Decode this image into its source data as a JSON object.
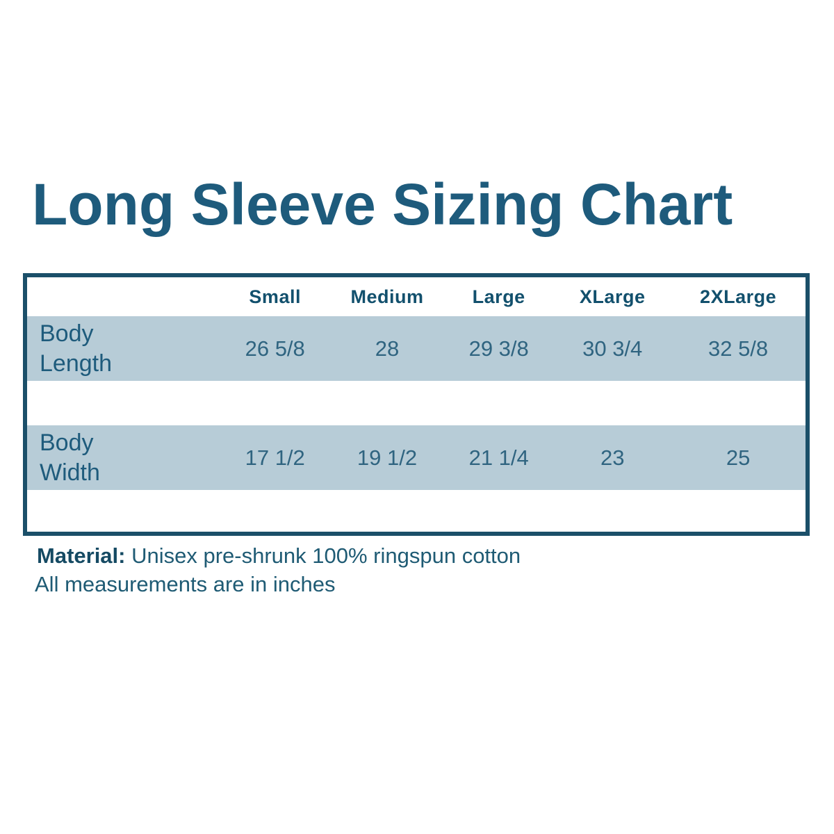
{
  "title": "Long Sleeve Sizing Chart",
  "table": {
    "columns": [
      "Small",
      "Medium",
      "Large",
      "XLarge",
      "2XLarge"
    ],
    "rows": [
      {
        "label": "Body\nLength",
        "values": [
          "26 5/8",
          "28",
          "29 3/8",
          "30 3/4",
          "32 5/8"
        ]
      },
      {
        "label": "Body\nWidth",
        "values": [
          "17 1/2",
          "19 1/2",
          "21 1/4",
          "23",
          "25"
        ]
      }
    ]
  },
  "footer": {
    "material_label": "Material:",
    "material_value": "Unisex pre-shrunk 100% ringspun cotton",
    "note": "All measurements are in inches"
  },
  "colors": {
    "title_text": "#1e5b7c",
    "header_text": "#12506d",
    "value_text": "#2f6480",
    "row_band": "#b7ccd7",
    "table_border": "#1b4f69",
    "background": "#ffffff"
  },
  "chart_data": {
    "type": "table",
    "title": "Long Sleeve Sizing Chart",
    "columns": [
      "Small",
      "Medium",
      "Large",
      "XLarge",
      "2XLarge"
    ],
    "rows": [
      {
        "label": "Body Length",
        "values": [
          "26 5/8",
          "28",
          "29 3/8",
          "30 3/4",
          "32 5/8"
        ]
      },
      {
        "label": "Body Width",
        "values": [
          "17 1/2",
          "19 1/2",
          "21 1/4",
          "23",
          "25"
        ]
      }
    ],
    "units": "inches",
    "notes": [
      "Material: Unisex pre-shrunk 100% ringspun cotton",
      "All measurements are in inches"
    ]
  }
}
